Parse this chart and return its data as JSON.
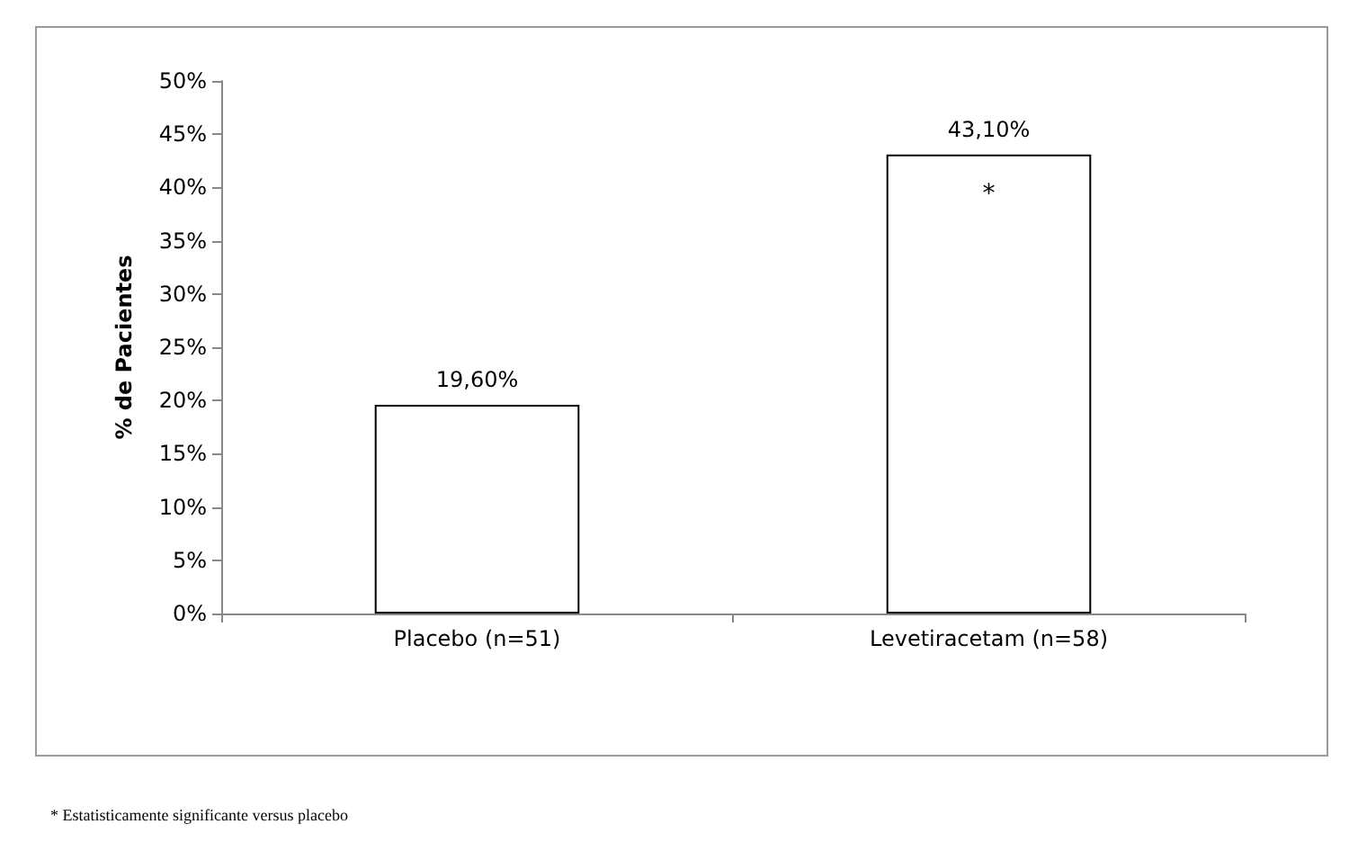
{
  "chart_data": {
    "type": "bar",
    "ylabel": "% de Pacientes",
    "categories": [
      "Placebo (n=51)",
      "Levetiracetam (n=58)"
    ],
    "values": [
      19.6,
      43.1
    ],
    "value_labels": [
      "19,60%",
      "43,10%"
    ],
    "color": "#ffffff",
    "ylim": [
      0,
      50
    ],
    "yticks": [
      {
        "value": 0,
        "label": "0%"
      },
      {
        "value": 5,
        "label": "5%"
      },
      {
        "value": 10,
        "label": "10%"
      },
      {
        "value": 15,
        "label": "15%"
      },
      {
        "value": 20,
        "label": "20%"
      },
      {
        "value": 25,
        "label": "25%"
      },
      {
        "value": 30,
        "label": "30%"
      },
      {
        "value": 35,
        "label": "35%"
      },
      {
        "value": 40,
        "label": "40%"
      },
      {
        "value": 45,
        "label": "45%"
      },
      {
        "value": 50,
        "label": "50%"
      }
    ],
    "grid": false,
    "annotations": [
      "*",
      "* Estatisticamente significante versus placebo"
    ]
  }
}
